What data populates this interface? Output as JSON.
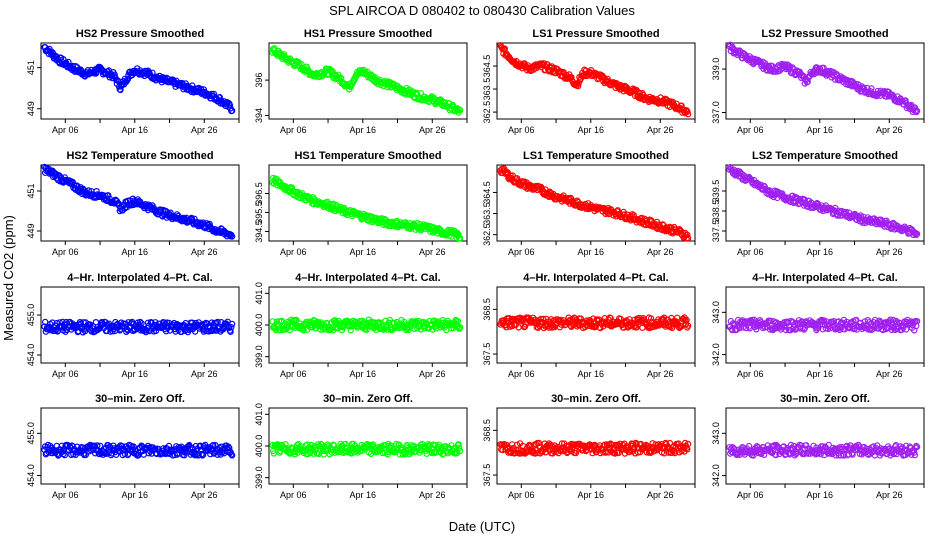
{
  "title": "SPL    AIRCOA D    080402 to 080430    Calibration Values",
  "xlabel": "Date (UTC)",
  "ylabel": "Measured CO2 (ppm)",
  "colors": {
    "HS2": "#0000ff",
    "HS1": "#00ff00",
    "LS1": "#ff0000",
    "LS2": "#a020f0"
  },
  "chart_data": [
    {
      "type": "scatter",
      "title": "HS2 Pressure Smoothed",
      "color": "#0000ff",
      "ylim": [
        448.5,
        452.2
      ],
      "yticks": [
        "449",
        "451"
      ],
      "ytick_values": [
        449,
        451
      ],
      "xticks": [
        "Apr 06",
        "Apr 16",
        "Apr 26"
      ],
      "xtick_values": [
        4,
        14,
        24
      ],
      "xlim": [
        0.5,
        29
      ],
      "series": {
        "x": [
          1,
          3,
          5,
          7,
          9,
          11,
          12,
          13,
          14,
          16,
          18,
          20,
          22,
          24,
          26,
          28
        ],
        "y": [
          452.0,
          451.4,
          451.0,
          450.7,
          450.9,
          450.6,
          450.0,
          450.6,
          450.9,
          450.7,
          450.4,
          450.2,
          450.0,
          449.8,
          449.5,
          449.0
        ]
      }
    },
    {
      "type": "scatter",
      "title": "HS1 Pressure Smoothed",
      "color": "#00ff00",
      "ylim": [
        393.8,
        398.1
      ],
      "yticks": [
        "394",
        "396"
      ],
      "ytick_values": [
        394,
        396
      ],
      "xticks": [
        "Apr 06",
        "Apr 16",
        "Apr 26"
      ],
      "xtick_values": [
        4,
        14,
        24
      ],
      "xlim": [
        0.5,
        29
      ],
      "series": {
        "x": [
          1,
          3,
          5,
          7,
          9,
          11,
          12,
          13,
          14,
          16,
          18,
          20,
          22,
          24,
          26,
          28
        ],
        "y": [
          397.7,
          397.2,
          396.8,
          396.3,
          396.5,
          396.0,
          395.6,
          396.3,
          396.5,
          396.0,
          395.7,
          395.4,
          395.1,
          394.9,
          394.6,
          394.2
        ]
      }
    },
    {
      "type": "scatter",
      "title": "LS1 Pressure Smoothed",
      "color": "#ff0000",
      "ylim": [
        362.2,
        365.5
      ],
      "yticks": [
        "362.5",
        "363.5",
        "364.5"
      ],
      "ytick_values": [
        362.5,
        363.5,
        364.5
      ],
      "xticks": [
        "Apr 06",
        "Apr 16",
        "Apr 26"
      ],
      "xtick_values": [
        4,
        14,
        24
      ],
      "xlim": [
        0.5,
        29
      ],
      "series": {
        "x": [
          1,
          3,
          5,
          7,
          9,
          11,
          12,
          13,
          14,
          16,
          18,
          20,
          22,
          24,
          26,
          28
        ],
        "y": [
          365.3,
          364.7,
          364.4,
          364.5,
          364.3,
          364.0,
          363.7,
          364.2,
          364.2,
          363.9,
          363.6,
          363.4,
          363.1,
          363.0,
          362.8,
          362.5
        ]
      }
    },
    {
      "type": "scatter",
      "title": "LS2 Pressure Smoothed",
      "color": "#a020f0",
      "ylim": [
        336.7,
        340.2
      ],
      "yticks": [
        "337.0",
        "339.0"
      ],
      "ytick_values": [
        337,
        339
      ],
      "xticks": [
        "Apr 06",
        "Apr 16",
        "Apr 26"
      ],
      "xtick_values": [
        4,
        14,
        24
      ],
      "xlim": [
        0.5,
        29
      ],
      "series": {
        "x": [
          1,
          3,
          5,
          7,
          9,
          11,
          12,
          13,
          14,
          16,
          18,
          20,
          22,
          24,
          26,
          28
        ],
        "y": [
          340.0,
          339.6,
          339.3,
          339.0,
          339.1,
          338.8,
          338.4,
          338.9,
          339.0,
          338.7,
          338.4,
          338.1,
          337.9,
          337.8,
          337.5,
          337.0
        ]
      }
    },
    {
      "type": "scatter",
      "title": "HS2 Temperature Smoothed",
      "color": "#0000ff",
      "ylim": [
        448.5,
        452.3
      ],
      "yticks": [
        "449",
        "451"
      ],
      "ytick_values": [
        449,
        451
      ],
      "xticks": [
        "Apr 06",
        "Apr 16",
        "Apr 26"
      ],
      "xtick_values": [
        4,
        14,
        24
      ],
      "xlim": [
        0.5,
        29
      ],
      "series": {
        "x": [
          1,
          3,
          5,
          7,
          9,
          11,
          12,
          13,
          14,
          16,
          18,
          20,
          22,
          24,
          26,
          28
        ],
        "y": [
          452.1,
          451.7,
          451.3,
          450.9,
          450.8,
          450.5,
          450.1,
          450.4,
          450.5,
          450.2,
          449.9,
          449.7,
          449.5,
          449.3,
          449.0,
          448.8
        ]
      }
    },
    {
      "type": "scatter",
      "title": "HS1 Temperature Smoothed",
      "color": "#00ff00",
      "ylim": [
        394.0,
        398.0
      ],
      "yticks": [
        "394.5",
        "395.5",
        "396.5"
      ],
      "ytick_values": [
        394.5,
        395.5,
        396.5
      ],
      "xticks": [
        "Apr 06",
        "Apr 16",
        "Apr 26"
      ],
      "xtick_values": [
        4,
        14,
        24
      ],
      "xlim": [
        0.5,
        29
      ],
      "series": {
        "x": [
          1,
          3,
          5,
          7,
          9,
          11,
          13,
          15,
          17,
          19,
          21,
          23,
          25,
          27,
          28
        ],
        "y": [
          397.2,
          396.8,
          396.4,
          396.1,
          395.9,
          395.6,
          395.4,
          395.2,
          395.0,
          394.9,
          394.8,
          394.7,
          394.5,
          394.4,
          394.2
        ]
      }
    },
    {
      "type": "scatter",
      "title": "LS1 Temperature Smoothed",
      "color": "#ff0000",
      "ylim": [
        362.2,
        365.8
      ],
      "yticks": [
        "362.5",
        "363.5",
        "364.5"
      ],
      "ytick_values": [
        362.5,
        363.5,
        364.5
      ],
      "xticks": [
        "Apr 06",
        "Apr 16",
        "Apr 26"
      ],
      "xtick_values": [
        4,
        14,
        24
      ],
      "xlim": [
        0.5,
        29
      ],
      "series": {
        "x": [
          1,
          3,
          5,
          7,
          9,
          11,
          13,
          15,
          17,
          19,
          21,
          23,
          25,
          27,
          28
        ],
        "y": [
          365.6,
          365.1,
          364.8,
          364.6,
          364.3,
          364.1,
          363.9,
          363.7,
          363.6,
          363.4,
          363.2,
          363.0,
          362.8,
          362.6,
          362.4
        ]
      }
    },
    {
      "type": "scatter",
      "title": "LS2 Temperature Smoothed",
      "color": "#a020f0",
      "ylim": [
        337.0,
        340.8
      ],
      "yticks": [
        "337.5",
        "338.5",
        "339.5"
      ],
      "ytick_values": [
        337.5,
        338.5,
        339.5
      ],
      "xticks": [
        "Apr 06",
        "Apr 16",
        "Apr 26"
      ],
      "xtick_values": [
        4,
        14,
        24
      ],
      "xlim": [
        0.5,
        29
      ],
      "series": {
        "x": [
          1,
          3,
          5,
          7,
          9,
          11,
          13,
          15,
          17,
          19,
          21,
          23,
          25,
          27,
          28
        ],
        "y": [
          340.6,
          340.2,
          339.8,
          339.4,
          339.2,
          339.0,
          338.8,
          338.6,
          338.4,
          338.2,
          338.0,
          337.9,
          337.7,
          337.5,
          337.3
        ]
      }
    },
    {
      "type": "scatter",
      "title": "4–Hr. Interpolated 4–Pt. Cal.",
      "color": "#0000ff",
      "ylim": [
        453.8,
        455.7
      ],
      "yticks": [
        "454.0",
        "455.0"
      ],
      "ytick_values": [
        454,
        455
      ],
      "xticks": [
        "Apr 06",
        "Apr 16",
        "Apr 26"
      ],
      "xtick_values": [
        4,
        14,
        24
      ],
      "xlim": [
        0.5,
        29
      ],
      "series": {
        "x": [
          1,
          5,
          10,
          15,
          20,
          25,
          28
        ],
        "y": [
          454.7,
          454.7,
          454.7,
          454.7,
          454.7,
          454.7,
          454.7
        ]
      }
    },
    {
      "type": "scatter",
      "title": "4–Hr. Interpolated 4–Pt. Cal.",
      "color": "#00ff00",
      "ylim": [
        398.8,
        401.2
      ],
      "yticks": [
        "399.0",
        "400.0",
        "401.0"
      ],
      "ytick_values": [
        399,
        400,
        401
      ],
      "xticks": [
        "Apr 06",
        "Apr 16",
        "Apr 26"
      ],
      "xtick_values": [
        4,
        14,
        24
      ],
      "xlim": [
        0.5,
        29
      ],
      "series": {
        "x": [
          1,
          5,
          10,
          15,
          20,
          25,
          28
        ],
        "y": [
          400.0,
          400.0,
          400.0,
          400.0,
          400.0,
          400.0,
          400.0
        ]
      }
    },
    {
      "type": "scatter",
      "title": "4–Hr. Interpolated 4–Pt. Cal.",
      "color": "#ff0000",
      "ylim": [
        367.3,
        369.0
      ],
      "yticks": [
        "367.5",
        "368.5"
      ],
      "ytick_values": [
        367.5,
        368.5
      ],
      "xticks": [
        "Apr 06",
        "Apr 16",
        "Apr 26"
      ],
      "xtick_values": [
        4,
        14,
        24
      ],
      "xlim": [
        0.5,
        29
      ],
      "series": {
        "x": [
          1,
          5,
          10,
          15,
          20,
          25,
          28
        ],
        "y": [
          368.2,
          368.2,
          368.2,
          368.2,
          368.2,
          368.2,
          368.2
        ]
      }
    },
    {
      "type": "scatter",
      "title": "4–Hr. Interpolated 4–Pt. Cal.",
      "color": "#a020f0",
      "ylim": [
        341.8,
        343.6
      ],
      "yticks": [
        "342.0",
        "343.0"
      ],
      "ytick_values": [
        342,
        343
      ],
      "xticks": [
        "Apr 06",
        "Apr 16",
        "Apr 26"
      ],
      "xtick_values": [
        4,
        14,
        24
      ],
      "xlim": [
        0.5,
        29
      ],
      "series": {
        "x": [
          1,
          5,
          10,
          15,
          20,
          25,
          28
        ],
        "y": [
          342.7,
          342.7,
          342.7,
          342.7,
          342.7,
          342.7,
          342.7
        ]
      }
    },
    {
      "type": "scatter",
      "title": "30–min. Zero Off.",
      "color": "#0000ff",
      "ylim": [
        453.8,
        455.6
      ],
      "yticks": [
        "454.0",
        "455.0"
      ],
      "ytick_values": [
        454,
        455
      ],
      "xticks": [
        "Apr 06",
        "Apr 16",
        "Apr 26"
      ],
      "xtick_values": [
        4,
        14,
        24
      ],
      "xlim": [
        0.5,
        29
      ],
      "series": {
        "x": [
          1,
          5,
          10,
          15,
          20,
          25,
          28
        ],
        "y": [
          454.6,
          454.6,
          454.6,
          454.6,
          454.6,
          454.6,
          454.6
        ]
      }
    },
    {
      "type": "scatter",
      "title": "30–min. Zero Off.",
      "color": "#00ff00",
      "ylim": [
        398.8,
        401.2
      ],
      "yticks": [
        "399.0",
        "400.0",
        "401.0"
      ],
      "ytick_values": [
        399,
        400,
        401
      ],
      "xticks": [
        "Apr 06",
        "Apr 16",
        "Apr 26"
      ],
      "xtick_values": [
        4,
        14,
        24
      ],
      "xlim": [
        0.5,
        29
      ],
      "series": {
        "x": [
          1,
          5,
          10,
          15,
          20,
          25,
          28
        ],
        "y": [
          399.9,
          399.9,
          399.9,
          399.9,
          399.9,
          399.9,
          399.9
        ]
      }
    },
    {
      "type": "scatter",
      "title": "30–min. Zero Off.",
      "color": "#ff0000",
      "ylim": [
        367.3,
        369.0
      ],
      "yticks": [
        "367.5",
        "368.5"
      ],
      "ytick_values": [
        367.5,
        368.5
      ],
      "xticks": [
        "Apr 06",
        "Apr 16",
        "Apr 26"
      ],
      "xtick_values": [
        4,
        14,
        24
      ],
      "xlim": [
        0.5,
        29
      ],
      "series": {
        "x": [
          1,
          5,
          10,
          15,
          20,
          25,
          28
        ],
        "y": [
          368.1,
          368.1,
          368.1,
          368.1,
          368.1,
          368.1,
          368.1
        ]
      }
    },
    {
      "type": "scatter",
      "title": "30–min. Zero Off.",
      "color": "#a020f0",
      "ylim": [
        341.8,
        343.6
      ],
      "yticks": [
        "342.0",
        "343.0"
      ],
      "ytick_values": [
        342,
        343
      ],
      "xticks": [
        "Apr 06",
        "Apr 16",
        "Apr 26"
      ],
      "xtick_values": [
        4,
        14,
        24
      ],
      "xlim": [
        0.5,
        29
      ],
      "series": {
        "x": [
          1,
          5,
          10,
          15,
          20,
          25,
          28
        ],
        "y": [
          342.6,
          342.6,
          342.6,
          342.6,
          342.6,
          342.6,
          342.6
        ]
      }
    }
  ]
}
